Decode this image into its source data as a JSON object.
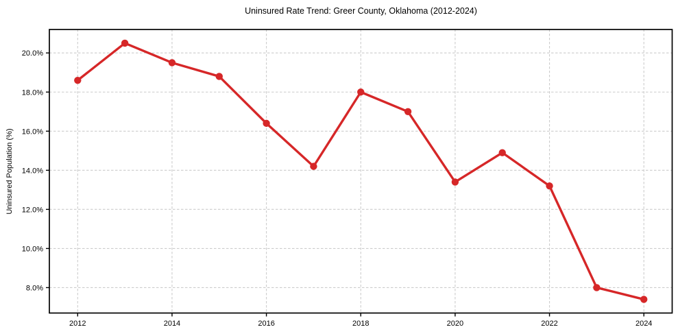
{
  "chart_data": {
    "type": "line",
    "title": "Uninsured Rate Trend: Greer County, Oklahoma (2012-2024)",
    "xlabel": "",
    "ylabel": "Uninsured Population (%)",
    "x": [
      2012,
      2013,
      2014,
      2015,
      2016,
      2017,
      2018,
      2019,
      2020,
      2021,
      2022,
      2023,
      2024
    ],
    "series": [
      {
        "name": "Uninsured Population (%)",
        "values": [
          18.6,
          20.5,
          19.5,
          18.8,
          16.4,
          14.2,
          18.0,
          17.0,
          13.4,
          14.9,
          13.2,
          8.0,
          7.4
        ]
      }
    ],
    "x_ticks": [
      2012,
      2014,
      2016,
      2018,
      2020,
      2022,
      2024
    ],
    "x_tick_labels": [
      "2012",
      "2014",
      "2016",
      "2018",
      "2020",
      "2022",
      "2024"
    ],
    "y_ticks": [
      8,
      10,
      12,
      14,
      16,
      18,
      20
    ],
    "y_tick_labels": [
      "8.0%",
      "10.0%",
      "12.0%",
      "14.0%",
      "16.0%",
      "18.0%",
      "20.0%"
    ],
    "xlim": [
      2011.4,
      2024.6
    ],
    "ylim": [
      6.7,
      21.2
    ],
    "grid": true,
    "grid_style": "dashed",
    "legend": false,
    "colors": {
      "line": "#d62728",
      "marker": "#d62728",
      "grid": "#cccccc",
      "axis": "#000000",
      "text": "#000000",
      "background": "#ffffff"
    }
  }
}
